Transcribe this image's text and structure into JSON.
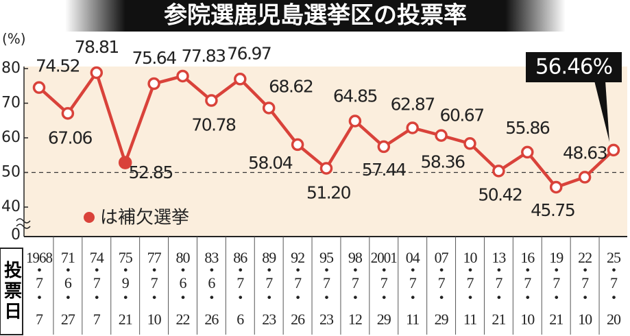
{
  "chart_data": {
    "type": "line",
    "title": "参院選鹿児島選挙区の投票率",
    "y_label": "(%)",
    "x_label": "投票日",
    "legend": "は補欠選挙",
    "categories": [
      "1968",
      "71",
      "74",
      "75",
      "77",
      "80",
      "83",
      "86",
      "89",
      "92",
      "95",
      "98",
      "2001",
      "04",
      "07",
      "10",
      "13",
      "16",
      "19",
      "22",
      "25"
    ],
    "months": [
      "7",
      "6",
      "7",
      "9",
      "7",
      "6",
      "6",
      "7",
      "7",
      "7",
      "7",
      "7",
      "7",
      "7",
      "7",
      "7",
      "7",
      "7",
      "7",
      "7",
      "7"
    ],
    "days": [
      "7",
      "27",
      "7",
      "21",
      "10",
      "22",
      "26",
      "6",
      "23",
      "26",
      "23",
      "12",
      "29",
      "11",
      "29",
      "11",
      "21",
      "10",
      "21",
      "10",
      "20"
    ],
    "series": [
      {
        "name": "投票率",
        "color": "#d9423a",
        "values": [
          74.52,
          67.06,
          78.81,
          52.85,
          75.64,
          77.83,
          70.78,
          76.97,
          68.62,
          58.04,
          51.2,
          64.85,
          57.44,
          62.87,
          60.67,
          58.36,
          50.42,
          55.86,
          45.75,
          48.63,
          56.46
        ],
        "value_labels": [
          "74.52",
          "67.06",
          "78.81",
          "52.85",
          "75.64",
          "77.83",
          "70.78",
          "76.97",
          "68.62",
          "58.04",
          "51.20",
          "64.85",
          "57.44",
          "62.87",
          "60.67",
          "58.36",
          "50.42",
          "55.86",
          "45.75",
          "48.63",
          "56.46%"
        ],
        "by_election": [
          false,
          false,
          false,
          true,
          false,
          false,
          false,
          false,
          false,
          false,
          false,
          false,
          false,
          false,
          false,
          false,
          false,
          false,
          false,
          false,
          false
        ]
      }
    ],
    "ylim": [
      40,
      80
    ],
    "yticks": [
      40,
      50,
      60,
      70,
      80
    ],
    "axis_break_tick": 0,
    "reference_line": 50,
    "background": "#fbeedd"
  }
}
